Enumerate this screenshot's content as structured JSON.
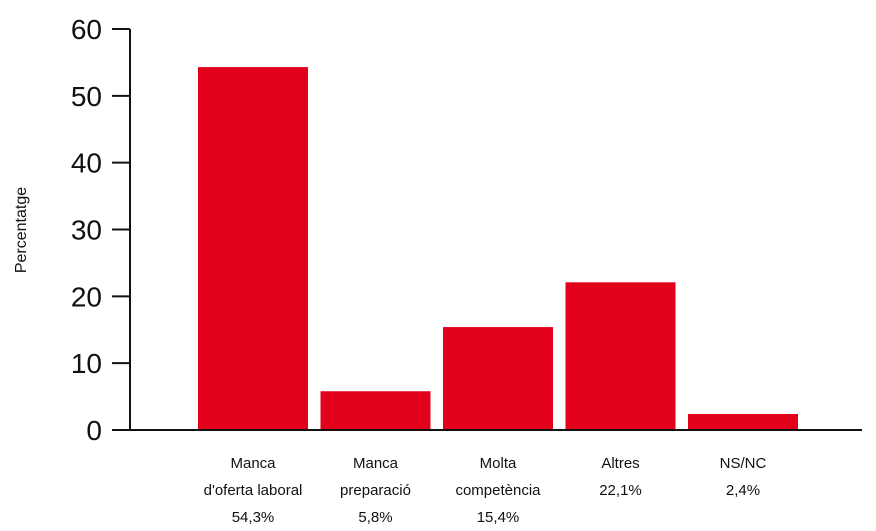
{
  "chart_data": {
    "type": "bar",
    "ylabel": "Percentatge",
    "xlabel": "",
    "ylim": [
      0,
      60
    ],
    "yticks": [
      0,
      10,
      20,
      30,
      40,
      50,
      60
    ],
    "bar_color": "#e2001a",
    "grid": false,
    "categories": [
      {
        "lines": [
          "Manca",
          "d'oferta laboral",
          "54,3%"
        ]
      },
      {
        "lines": [
          "Manca",
          "preparació",
          "5,8%"
        ]
      },
      {
        "lines": [
          "Molta",
          "competència",
          "15,4%"
        ]
      },
      {
        "lines": [
          "Altres",
          "22,1%"
        ]
      },
      {
        "lines": [
          "NS/NC",
          "2,4%"
        ]
      }
    ],
    "values": [
      54.3,
      5.8,
      15.4,
      22.1,
      2.4
    ]
  }
}
